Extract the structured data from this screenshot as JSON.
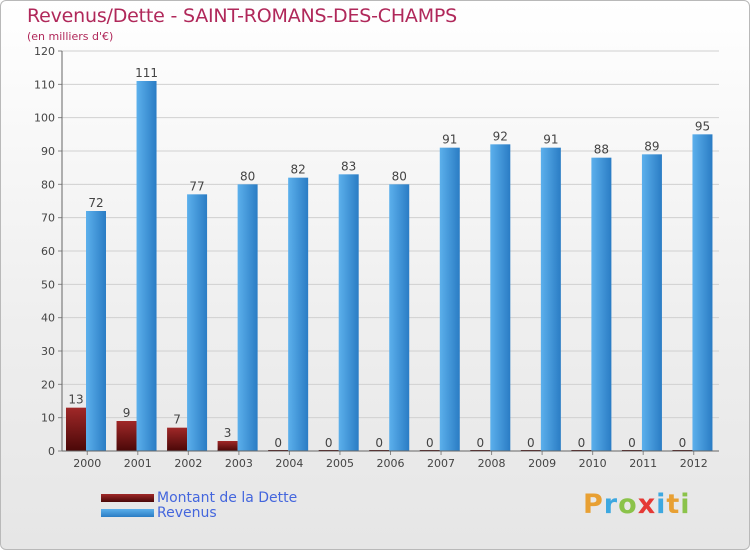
{
  "title": "Revenus/Dette - SAINT-ROMANS-DES-CHAMPS",
  "subtitle": "(en milliers d'€)",
  "logo": {
    "letters": [
      "P",
      "r",
      "o",
      "x",
      "i",
      "t",
      "i"
    ],
    "colors": [
      "#e8a033",
      "#3da8e0",
      "#8bc34a",
      "#e53935",
      "#3da8e0",
      "#e8a033",
      "#8bc34a"
    ]
  },
  "colors": {
    "dette_top": "#a02828",
    "dette_bottom": "#4a0808",
    "revenus_top": "#5cb0ec",
    "revenus_bottom": "#2a7cc4",
    "title": "#b0285a"
  },
  "chart_data": {
    "type": "bar",
    "categories": [
      "2000",
      "2001",
      "2002",
      "2003",
      "2004",
      "2005",
      "2006",
      "2007",
      "2008",
      "2009",
      "2010",
      "2011",
      "2012"
    ],
    "series": [
      {
        "name": "Montant de la Dette",
        "values": [
          13,
          9,
          7,
          3,
          0,
          0,
          0,
          0,
          0,
          0,
          0,
          0,
          0
        ]
      },
      {
        "name": "Revenus",
        "values": [
          72,
          111,
          77,
          80,
          82,
          83,
          80,
          91,
          92,
          91,
          88,
          89,
          95
        ]
      }
    ],
    "yticks": [
      0,
      10,
      20,
      30,
      40,
      50,
      60,
      70,
      80,
      90,
      100,
      110,
      120
    ],
    "ylim": [
      0,
      120
    ],
    "grid": true,
    "legend": "bottom-left"
  }
}
